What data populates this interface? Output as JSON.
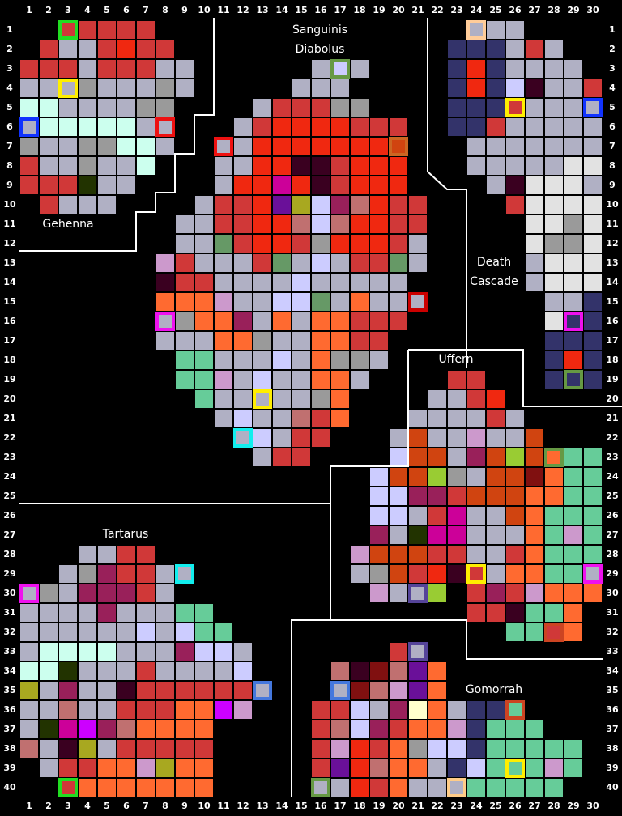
{
  "columns": [
    1,
    2,
    3,
    4,
    5,
    6,
    7,
    8,
    9,
    10,
    11,
    12,
    13,
    14,
    15,
    16,
    17,
    18,
    19,
    20,
    21,
    22,
    23,
    24,
    25,
    26,
    27,
    28,
    29,
    30
  ],
  "rows": [
    1,
    2,
    3,
    4,
    5,
    6,
    7,
    8,
    9,
    10,
    11,
    12,
    13,
    14,
    15,
    16,
    17,
    18,
    19,
    20,
    21,
    22,
    23,
    24,
    25,
    26,
    27,
    28,
    29,
    30,
    31,
    32,
    33,
    34,
    35,
    36,
    37,
    38,
    39,
    40
  ],
  "regions": [
    "Sanguinis",
    "Diabolus",
    "Gehenna",
    "Death",
    "Cascade",
    "Uffern",
    "Tartarus",
    "Gomorrah"
  ]
}
